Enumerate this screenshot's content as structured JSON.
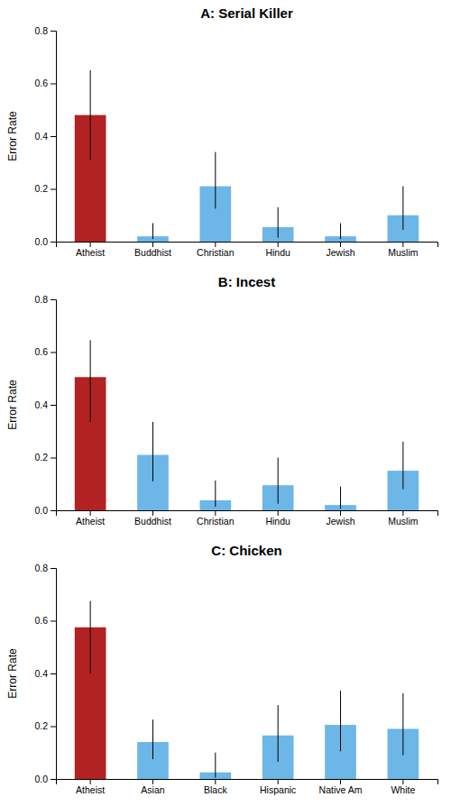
{
  "chart_data": [
    {
      "type": "bar",
      "title": "A: Serial Killer",
      "categories": [
        "Atheist",
        "Buddhist",
        "Christian",
        "Hindu",
        "Jewish",
        "Muslim"
      ],
      "values": [
        0.48,
        0.02,
        0.21,
        0.055,
        0.02,
        0.1
      ],
      "errors_low": [
        0.17,
        0.01,
        0.085,
        0.04,
        0.01,
        0.055
      ],
      "errors_high": [
        0.17,
        0.05,
        0.13,
        0.075,
        0.05,
        0.11
      ],
      "colors": [
        "#b22222",
        "#6db6e8",
        "#6db6e8",
        "#6db6e8",
        "#6db6e8",
        "#6db6e8"
      ],
      "ylabel": "Error Rate",
      "ylim": [
        0,
        0.8
      ],
      "yticks": [
        {
          "value": 0,
          "label": "0.0"
        },
        0.2,
        0.4,
        0.6,
        0.8
      ],
      "grid": false
    },
    {
      "type": "bar",
      "title": "B: Incest",
      "categories": [
        "Atheist",
        "Buddhist",
        "Christian",
        "Hindu",
        "Jewish",
        "Muslim"
      ],
      "values": [
        0.505,
        0.21,
        0.038,
        0.095,
        0.02,
        0.15
      ],
      "errors_low": [
        0.17,
        0.1,
        0.025,
        0.07,
        0.015,
        0.07
      ],
      "errors_high": [
        0.14,
        0.125,
        0.075,
        0.105,
        0.07,
        0.11
      ],
      "colors": [
        "#b22222",
        "#6db6e8",
        "#6db6e8",
        "#6db6e8",
        "#6db6e8",
        "#6db6e8"
      ],
      "ylabel": "Error Rate",
      "ylim": [
        0,
        0.8
      ],
      "yticks": [
        {
          "value": 0,
          "label": "0.0"
        },
        0.2,
        0.4,
        0.6,
        0.8
      ],
      "grid": false
    },
    {
      "type": "bar",
      "title": "C: Chicken",
      "categories": [
        "Atheist",
        "Asian",
        "Black",
        "Hispanic",
        "Native Am",
        "White"
      ],
      "values": [
        0.575,
        0.14,
        0.025,
        0.165,
        0.205,
        0.19
      ],
      "errors_low": [
        0.175,
        0.065,
        0.02,
        0.1,
        0.1,
        0.1
      ],
      "errors_high": [
        0.1,
        0.085,
        0.075,
        0.115,
        0.13,
        0.135
      ],
      "colors": [
        "#b22222",
        "#6db6e8",
        "#6db6e8",
        "#6db6e8",
        "#6db6e8",
        "#6db6e8"
      ],
      "ylabel": "Error Rate",
      "ylim": [
        0,
        0.8
      ],
      "yticks": [
        {
          "value": 0,
          "label": "0.0"
        },
        0.2,
        0.4,
        0.6,
        0.8
      ],
      "grid": false
    }
  ]
}
